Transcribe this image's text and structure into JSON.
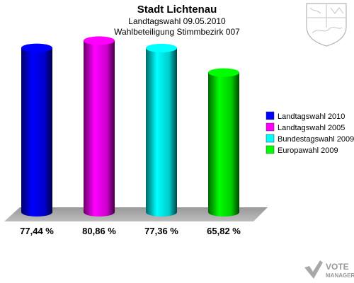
{
  "header": {
    "title": "Stadt Lichtenau",
    "subtitle1": "Landtagswahl 09.05.2010",
    "subtitle2": "Wahlbeteiligung Stimmbezirk 007"
  },
  "chart_data": {
    "type": "bar",
    "title": "Stadt Lichtenau",
    "subtitle": "Landtagswahl 09.05.2010 – Wahlbeteiligung Stimmbezirk 007",
    "categories": [
      "Landtagswahl 2010",
      "Landtagswahl 2005",
      "Bundestagswahl 2009",
      "Europawahl 2009"
    ],
    "values": [
      77.44,
      80.86,
      77.36,
      65.82
    ],
    "value_labels": [
      "77,44 %",
      "80,86 %",
      "77,36 %",
      "65,82 %"
    ],
    "colors": [
      "#0000ff",
      "#ff00ff",
      "#00ffff",
      "#00ff00"
    ],
    "ylim": [
      0,
      100
    ],
    "grid": false,
    "legend_position": "right"
  },
  "legend": {
    "items": [
      {
        "label": "Landtagswahl 2010",
        "color": "#0000ff"
      },
      {
        "label": "Landtagswahl 2005",
        "color": "#ff00ff"
      },
      {
        "label": "Bundestagswahl 2009",
        "color": "#00ffff"
      },
      {
        "label": "Europawahl 2009",
        "color": "#00ff00"
      }
    ]
  },
  "logo": {
    "line1": "VOTE",
    "line2": "MANAGER"
  },
  "icons": {
    "coat_of_arms": "coat-of-arms-icon",
    "vote_check": "vote-check-icon"
  }
}
